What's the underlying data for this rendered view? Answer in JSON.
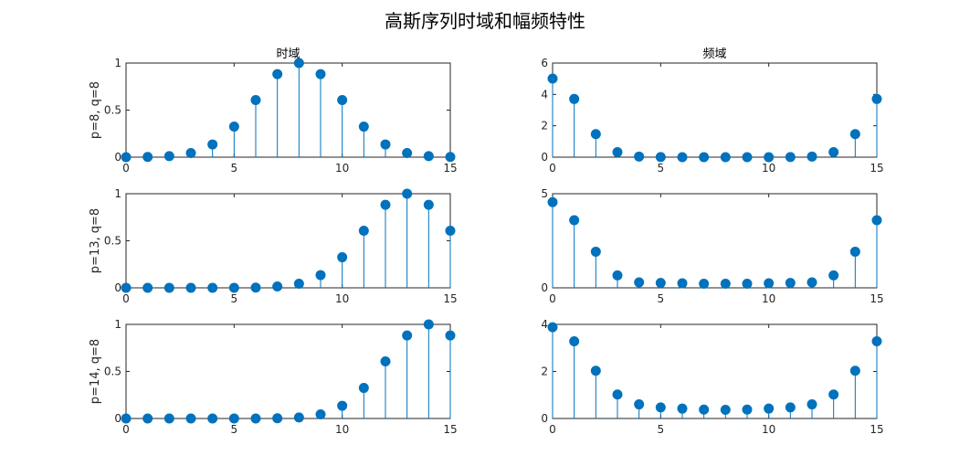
{
  "figure": {
    "title": "高斯序列时域和幅频特性"
  },
  "style": {
    "stem_color": "#0072BD",
    "axis_color": "#262626"
  },
  "chart_data": [
    {
      "type": "stem",
      "panel": "time-1",
      "title": "时域",
      "ylabel": "p=8, q=8",
      "x": [
        0,
        1,
        2,
        3,
        4,
        5,
        6,
        7,
        8,
        9,
        10,
        11,
        12,
        13,
        14,
        15
      ],
      "values": [
        0.0003,
        0.0022,
        0.0111,
        0.0439,
        0.1353,
        0.3247,
        0.6065,
        0.8825,
        1.0,
        0.8825,
        0.6065,
        0.3247,
        0.1353,
        0.0439,
        0.0111,
        0.0022
      ],
      "xlim": [
        0,
        15
      ],
      "ylim": [
        0,
        1
      ],
      "xticks": [
        0,
        5,
        10,
        15
      ],
      "yticks": [
        0,
        0.5,
        1
      ]
    },
    {
      "type": "stem",
      "panel": "freq-1",
      "title": "频域",
      "ylabel": "",
      "x": [
        0,
        1,
        2,
        3,
        4,
        5,
        6,
        7,
        8,
        9,
        10,
        11,
        12,
        13,
        14,
        15
      ],
      "values": [
        5.01,
        3.71,
        1.47,
        0.32,
        0.04,
        0.01,
        0.0,
        0.0,
        0.0,
        0.0,
        0.0,
        0.01,
        0.04,
        0.32,
        1.47,
        3.71
      ],
      "xlim": [
        0,
        15
      ],
      "ylim": [
        0,
        6
      ],
      "xticks": [
        0,
        5,
        10,
        15
      ],
      "yticks": [
        0,
        2,
        4,
        6
      ]
    },
    {
      "type": "stem",
      "panel": "time-2",
      "title": "",
      "ylabel": "p=13, q=8",
      "x": [
        0,
        1,
        2,
        3,
        4,
        5,
        6,
        7,
        8,
        9,
        10,
        11,
        12,
        13,
        14,
        15
      ],
      "values": [
        0.0,
        0.0,
        0.0,
        0.0,
        0.0,
        0.0,
        0.0025,
        0.0146,
        0.0439,
        0.1353,
        0.3247,
        0.6065,
        0.8825,
        1.0,
        0.8825,
        0.6065
      ],
      "xlim": [
        0,
        15
      ],
      "ylim": [
        0,
        1
      ],
      "xticks": [
        0,
        5,
        10,
        15
      ],
      "yticks": [
        0,
        0.5,
        1
      ]
    },
    {
      "type": "stem",
      "panel": "freq-2",
      "title": "",
      "ylabel": "",
      "x": [
        0,
        1,
        2,
        3,
        4,
        5,
        6,
        7,
        8,
        9,
        10,
        11,
        12,
        13,
        14,
        15
      ],
      "values": [
        4.55,
        3.59,
        1.92,
        0.66,
        0.29,
        0.26,
        0.24,
        0.22,
        0.22,
        0.22,
        0.24,
        0.26,
        0.29,
        0.66,
        1.92,
        3.59
      ],
      "xlim": [
        0,
        15
      ],
      "ylim": [
        0,
        5
      ],
      "xticks": [
        0,
        5,
        10,
        15
      ],
      "yticks": [
        0,
        5
      ]
    },
    {
      "type": "stem",
      "panel": "time-3",
      "title": "",
      "ylabel": "p=14, q=8",
      "x": [
        0,
        1,
        2,
        3,
        4,
        5,
        6,
        7,
        8,
        9,
        10,
        11,
        12,
        13,
        14,
        15
      ],
      "values": [
        0.0,
        0.0,
        0.0,
        0.0,
        0.0,
        0.0,
        0.0,
        0.0025,
        0.0111,
        0.0439,
        0.1353,
        0.3247,
        0.6065,
        0.8825,
        1.0,
        0.8825
      ],
      "xlim": [
        0,
        15
      ],
      "ylim": [
        0,
        1
      ],
      "xticks": [
        0,
        5,
        10,
        15
      ],
      "yticks": [
        0,
        0.5,
        1
      ]
    },
    {
      "type": "stem",
      "panel": "freq-3",
      "title": "",
      "ylabel": "",
      "x": [
        0,
        1,
        2,
        3,
        4,
        5,
        6,
        7,
        8,
        9,
        10,
        11,
        12,
        13,
        14,
        15
      ],
      "values": [
        3.88,
        3.28,
        2.03,
        1.02,
        0.6,
        0.47,
        0.42,
        0.38,
        0.37,
        0.38,
        0.42,
        0.47,
        0.6,
        1.02,
        2.03,
        3.28
      ],
      "xlim": [
        0,
        15
      ],
      "ylim": [
        0,
        4
      ],
      "xticks": [
        0,
        5,
        10,
        15
      ],
      "yticks": [
        0,
        2,
        4
      ]
    }
  ]
}
